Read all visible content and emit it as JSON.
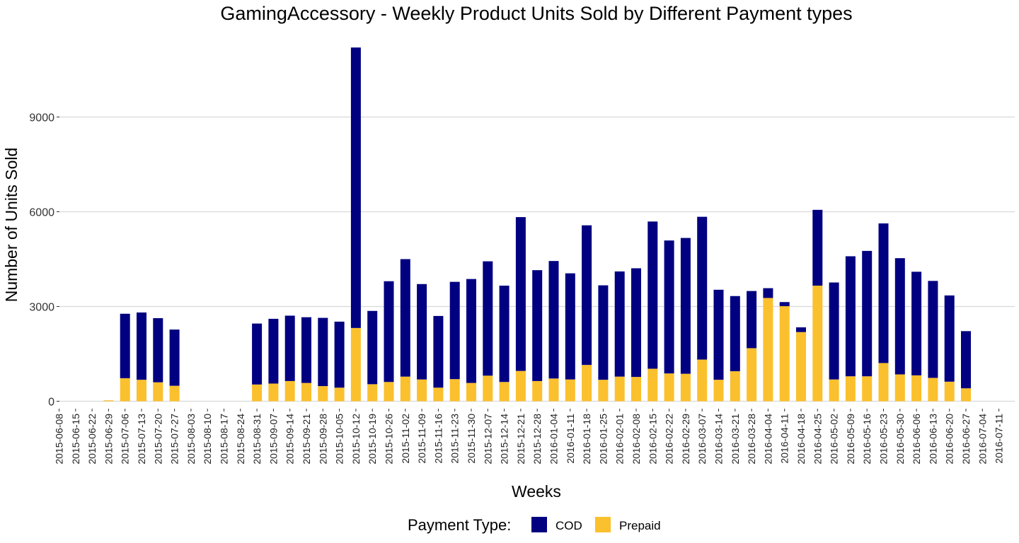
{
  "chart_data": {
    "type": "bar",
    "stacked": true,
    "title": "GamingAccessory - Weekly Product Units Sold by Different Payment types",
    "xlabel": "Weeks",
    "ylabel": "Number of Units Sold",
    "ylim": [
      0,
      11200
    ],
    "yticks": [
      0,
      3000,
      6000,
      9000
    ],
    "ytick_labels": [
      "0",
      "3000",
      "6000",
      "9000"
    ],
    "grid": "horizontal major",
    "legend_position": "bottom",
    "legend_title": "Payment Type:",
    "categories": [
      "2015-06-08",
      "2015-06-15",
      "2015-06-22",
      "2015-06-29",
      "2015-07-06",
      "2015-07-13",
      "2015-07-20",
      "2015-07-27",
      "2015-08-03",
      "2015-08-10",
      "2015-08-17",
      "2015-08-24",
      "2015-08-31",
      "2015-09-07",
      "2015-09-14",
      "2015-09-21",
      "2015-09-28",
      "2015-10-05",
      "2015-10-12",
      "2015-10-19",
      "2015-10-26",
      "2015-11-02",
      "2015-11-09",
      "2015-11-16",
      "2015-11-23",
      "2015-11-30",
      "2015-12-07",
      "2015-12-14",
      "2015-12-21",
      "2015-12-28",
      "2016-01-04",
      "2016-01-11",
      "2016-01-18",
      "2016-01-25",
      "2016-02-01",
      "2016-02-08",
      "2016-02-15",
      "2016-02-22",
      "2016-02-29",
      "2016-03-07",
      "2016-03-14",
      "2016-03-21",
      "2016-03-28",
      "2016-04-04",
      "2016-04-11",
      "2016-04-18",
      "2016-04-25",
      "2016-05-02",
      "2016-05-09",
      "2016-05-16",
      "2016-05-23",
      "2016-05-30",
      "2016-06-06",
      "2016-06-13",
      "2016-06-20",
      "2016-06-27",
      "2016-07-04",
      "2016-07-11"
    ],
    "series": [
      {
        "name": "Prepaid",
        "color": "#FBC02D",
        "values": [
          0,
          0,
          0,
          30,
          730,
          680,
          600,
          490,
          0,
          0,
          0,
          0,
          530,
          560,
          640,
          580,
          480,
          430,
          2320,
          540,
          610,
          780,
          690,
          430,
          700,
          580,
          810,
          610,
          960,
          640,
          720,
          690,
          1150,
          680,
          780,
          770,
          1030,
          880,
          870,
          1320,
          680,
          950,
          1680,
          3270,
          3010,
          2190,
          3660,
          690,
          790,
          790,
          1210,
          850,
          820,
          740,
          620,
          410,
          0,
          0
        ]
      },
      {
        "name": "COD",
        "color": "#000080",
        "values": [
          0,
          0,
          0,
          0,
          2040,
          2130,
          2030,
          1780,
          0,
          0,
          0,
          0,
          1930,
          2050,
          2070,
          2080,
          2160,
          2090,
          8880,
          2320,
          3190,
          3720,
          3020,
          2270,
          3080,
          3290,
          3620,
          3050,
          4870,
          3510,
          3720,
          3360,
          4420,
          2990,
          3330,
          3440,
          4660,
          4210,
          4300,
          4520,
          2850,
          2380,
          1810,
          310,
          130,
          150,
          2400,
          3070,
          3800,
          3970,
          4420,
          3680,
          3280,
          3070,
          2730,
          1810,
          0,
          0
        ]
      }
    ]
  }
}
